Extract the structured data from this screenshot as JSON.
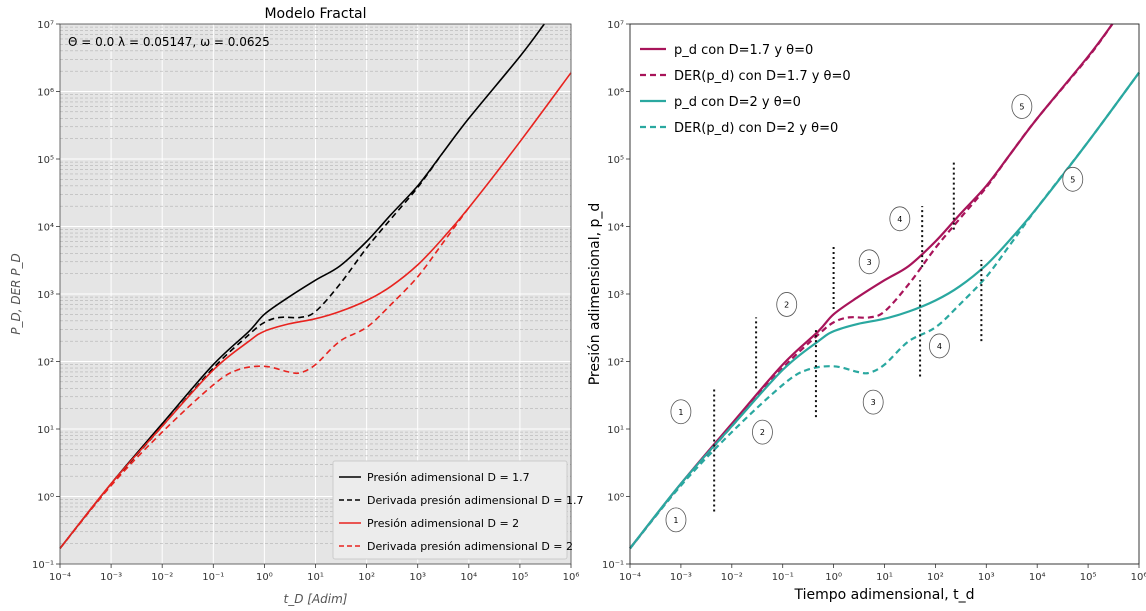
{
  "chart_data": [
    {
      "type": "line",
      "title": "Modelo Fractal",
      "annotation": "Θ = 0.0 λ = 0.05147, ω = 0.0625",
      "xlabel": "t_D [Adim]",
      "ylabel": "P_D,   DER P_D",
      "xscale": "log",
      "yscale": "log",
      "xlim": [
        0.0001,
        1000000
      ],
      "ylim": [
        0.1,
        10000000
      ],
      "grid": true,
      "legend_position": "lower-right",
      "x_ticks": [
        "10⁻⁴",
        "10⁻³",
        "10⁻²",
        "10⁻¹",
        "10⁰",
        "10¹",
        "10²",
        "10³",
        "10⁴",
        "10⁵",
        "10⁶"
      ],
      "y_ticks": [
        "10⁻¹",
        "10⁰",
        "10¹",
        "10²",
        "10³",
        "10⁴",
        "10⁵",
        "10⁶",
        "10⁷"
      ],
      "series": [
        {
          "name": "Presión adimensional D = 1.7",
          "color": "#000000",
          "dash": false,
          "x": [
            0.0001,
            0.001,
            0.01,
            0.1,
            0.5,
            1,
            3,
            10,
            30,
            100,
            300,
            1000,
            3000,
            10000,
            100000,
            300000
          ],
          "y": [
            0.17,
            1.55,
            12,
            90,
            280,
            500,
            900,
            1600,
            2600,
            6000,
            15000,
            40000,
            120000,
            400000,
            3300000,
            10000000
          ]
        },
        {
          "name": "Derivada presión adimensional D = 1.7",
          "color": "#000000",
          "dash": true,
          "x": [
            0.0001,
            0.001,
            0.01,
            0.1,
            0.5,
            1,
            2,
            5,
            10,
            30,
            100,
            300,
            1000,
            3000
          ],
          "y": [
            0.17,
            1.5,
            11,
            80,
            250,
            380,
            450,
            450,
            550,
            1400,
            4800,
            13000,
            38000,
            120000
          ]
        },
        {
          "name": "Presión adimensional D = 2",
          "color": "#e8231f",
          "dash": false,
          "x": [
            0.0001,
            0.001,
            0.01,
            0.1,
            0.5,
            1,
            3,
            10,
            30,
            100,
            300,
            1000,
            3000,
            10000,
            100000,
            1000000
          ],
          "y": [
            0.17,
            1.55,
            11,
            75,
            200,
            280,
            360,
            430,
            550,
            800,
            1300,
            2700,
            6500,
            19000,
            180000,
            1900000
          ]
        },
        {
          "name": "Derivada presión adimensional D = 2",
          "color": "#e8231f",
          "dash": true,
          "x": [
            0.0001,
            0.001,
            0.01,
            0.1,
            0.3,
            1,
            3,
            5,
            10,
            30,
            100,
            300,
            1000,
            3000,
            10000
          ],
          "y": [
            0.17,
            1.45,
            9,
            45,
            75,
            85,
            70,
            68,
            90,
            200,
            320,
            700,
            1800,
            5500,
            19000
          ]
        }
      ]
    },
    {
      "type": "line",
      "title": "",
      "xlabel": "Tiempo adimensional, t_d",
      "ylabel": "Presión adimensional, p_d",
      "xscale": "log",
      "yscale": "log",
      "xlim": [
        0.0001,
        1000000
      ],
      "ylim": [
        0.1,
        10000000
      ],
      "grid": false,
      "legend_position": "top-left",
      "x_ticks": [
        "10⁻⁴",
        "10⁻³",
        "10⁻²",
        "10⁻¹",
        "10⁰",
        "10¹",
        "10²",
        "10³",
        "10⁴",
        "10⁵",
        "10⁶"
      ],
      "y_ticks": [
        "10⁻¹",
        "10⁰",
        "10¹",
        "10²",
        "10³",
        "10⁴",
        "10⁵",
        "10⁶",
        "10⁷"
      ],
      "series": [
        {
          "name": "p_d con D=1.7 y θ=0",
          "color": "#a8145a",
          "dash": false,
          "x": [
            0.0001,
            0.001,
            0.01,
            0.1,
            0.5,
            1,
            3,
            10,
            30,
            100,
            300,
            1000,
            3000,
            10000,
            100000,
            300000
          ],
          "y": [
            0.17,
            1.55,
            12,
            90,
            280,
            500,
            900,
            1600,
            2600,
            6000,
            15000,
            40000,
            120000,
            400000,
            3300000,
            10000000
          ]
        },
        {
          "name": "DER(p_d) con D=1.7 y θ=0",
          "color": "#a8145a",
          "dash": true,
          "x": [
            0.0001,
            0.001,
            0.01,
            0.1,
            0.5,
            1,
            2,
            5,
            10,
            30,
            100,
            300,
            1000,
            3000,
            10000,
            100000,
            300000
          ],
          "y": [
            0.17,
            1.5,
            11,
            80,
            250,
            380,
            450,
            450,
            550,
            1400,
            4800,
            13000,
            38000,
            120000,
            400000,
            3200000,
            10000000
          ]
        },
        {
          "name": "p_d con D=2 y θ=0",
          "color": "#2aa8a0",
          "dash": false,
          "x": [
            0.0001,
            0.001,
            0.01,
            0.1,
            0.5,
            1,
            3,
            10,
            30,
            100,
            300,
            1000,
            3000,
            10000,
            100000,
            1000000
          ],
          "y": [
            0.17,
            1.55,
            11,
            75,
            200,
            280,
            360,
            430,
            550,
            800,
            1300,
            2700,
            6500,
            19000,
            180000,
            1900000
          ]
        },
        {
          "name": "DER(p_d) con D=2 y θ=0",
          "color": "#2aa8a0",
          "dash": true,
          "x": [
            0.0001,
            0.001,
            0.01,
            0.1,
            0.3,
            1,
            3,
            5,
            10,
            30,
            100,
            300,
            1000,
            3000,
            10000,
            100000,
            1000000
          ],
          "y": [
            0.17,
            1.45,
            9,
            45,
            75,
            85,
            70,
            68,
            90,
            200,
            320,
            700,
            1800,
            5500,
            19000,
            180000,
            1900000
          ]
        }
      ],
      "vertical_markers": [
        {
          "x": 0.0045,
          "y_range": [
            0.6,
            40
          ]
        },
        {
          "x": 0.03,
          "y_range": [
            40,
            450
          ]
        },
        {
          "x": 0.45,
          "y_range": [
            15,
            300
          ]
        },
        {
          "x": 1,
          "y_range": [
            600,
            5000
          ]
        },
        {
          "x": 50,
          "y_range": [
            60,
            1600
          ]
        },
        {
          "x": 55,
          "y_range": [
            2500,
            20000
          ]
        },
        {
          "x": 230,
          "y_range": [
            9000,
            90000
          ]
        },
        {
          "x": 800,
          "y_range": [
            200,
            3200
          ]
        }
      ],
      "region_labels": [
        {
          "text": "1",
          "x": 0.001,
          "y": 18
        },
        {
          "text": "1",
          "x": 0.0008,
          "y": 0.45
        },
        {
          "text": "2",
          "x": 0.04,
          "y": 9
        },
        {
          "text": "2",
          "x": 0.12,
          "y": 700
        },
        {
          "text": "3",
          "x": 5,
          "y": 3000
        },
        {
          "text": "3",
          "x": 6,
          "y": 25
        },
        {
          "text": "4",
          "x": 20,
          "y": 13000
        },
        {
          "text": "4",
          "x": 120,
          "y": 170
        },
        {
          "text": "5",
          "x": 5000,
          "y": 600000
        },
        {
          "text": "5",
          "x": 50000,
          "y": 50000
        }
      ]
    }
  ]
}
